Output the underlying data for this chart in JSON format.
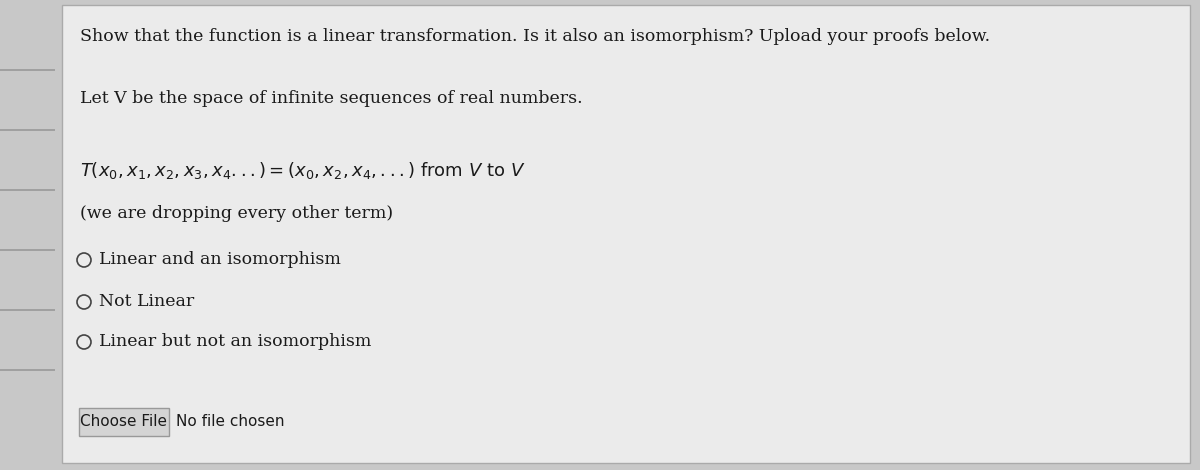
{
  "bg_outer": "#c8c8c8",
  "bg_panel": "#ececec",
  "panel_edge": "#aaaaaa",
  "title": "Show that the function is a linear transformation. Is it also an isomorphism? Upload your proofs below.",
  "subtitle": "Let V be the space of infinite sequences of real numbers.",
  "formula_math": "$T(x_0, x_1, x_2, x_3, x_4...) = (x_0, x_2, x_4, ...)$ from $V$ to $V$",
  "formula_note": "(we are dropping every other term)",
  "options": [
    "Linear and an isomorphism",
    "Not Linear",
    "Linear but not an isomorphism"
  ],
  "button_label": "Choose File",
  "file_label": "No file chosen",
  "text_color": "#1a1a1a",
  "radio_edge": "#444444",
  "sidebar_line_color": "#999999",
  "btn_face": "#d4d4d4",
  "btn_edge": "#999999",
  "panel_face": "#ebebeb",
  "title_fs": 12.5,
  "body_fs": 12.5,
  "formula_fs": 13.0,
  "note_fs": 12.5,
  "opt_fs": 12.5,
  "btn_fs": 11.0
}
